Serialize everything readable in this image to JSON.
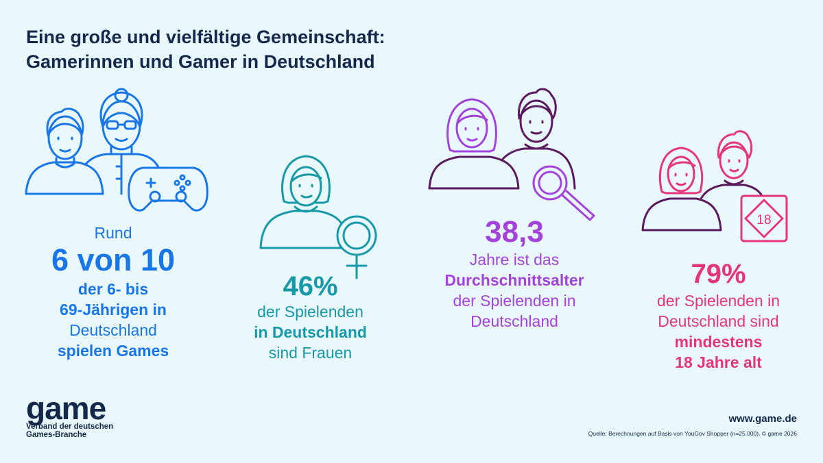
{
  "title": {
    "line1": "Eine große und vielfältige Gemeinschaft:",
    "line2": "Gamerinnen und Gamer in Deutschland"
  },
  "stats": [
    {
      "color": "#1976e8",
      "icons": [
        "young-man-icon",
        "grandmother-icon",
        "gamepad-icon"
      ],
      "lines": [
        "Rund",
        "6 von 10",
        "der 6- bis",
        "69-Jährigen in",
        "Deutschland",
        "spielen Games"
      ]
    },
    {
      "color": "#1899a8",
      "icons": [
        "woman-icon",
        "female-symbol-icon"
      ],
      "lines": [
        "46%",
        "der Spielenden",
        "in Deutschland",
        "sind Frauen"
      ]
    },
    {
      "color": "#a442dc",
      "icons": [
        "woman-icon",
        "man-icon",
        "magnifier-icon"
      ],
      "lines": [
        "38,3",
        "Jahre ist das",
        "Durchschnittsalter",
        "der Spielenden in",
        "Deutschland"
      ]
    },
    {
      "color": "#e4357d",
      "icons": [
        "woman-icon",
        "man-icon",
        "age-18-badge-icon"
      ],
      "badge": "18",
      "lines": [
        "79%",
        "der Spielenden in",
        "Deutschland sind",
        "mindestens",
        "18 Jahre alt"
      ]
    }
  ],
  "footer": {
    "logo_word": "game",
    "logo_tag1": "Verband der deutschen",
    "logo_tag2": "Games-Branche",
    "website": "www.game.de",
    "source": "Quelle: Berechnungen auf Basis von YouGov Shopper (n=25.000). © game 2026"
  },
  "colors": {
    "background": "#e9f8fd",
    "navy": "#13284a",
    "blue": "#1976e8",
    "teal": "#1899a8",
    "purple": "#a442dc",
    "dark_purple": "#5b1a5e",
    "pink": "#e4357d"
  }
}
